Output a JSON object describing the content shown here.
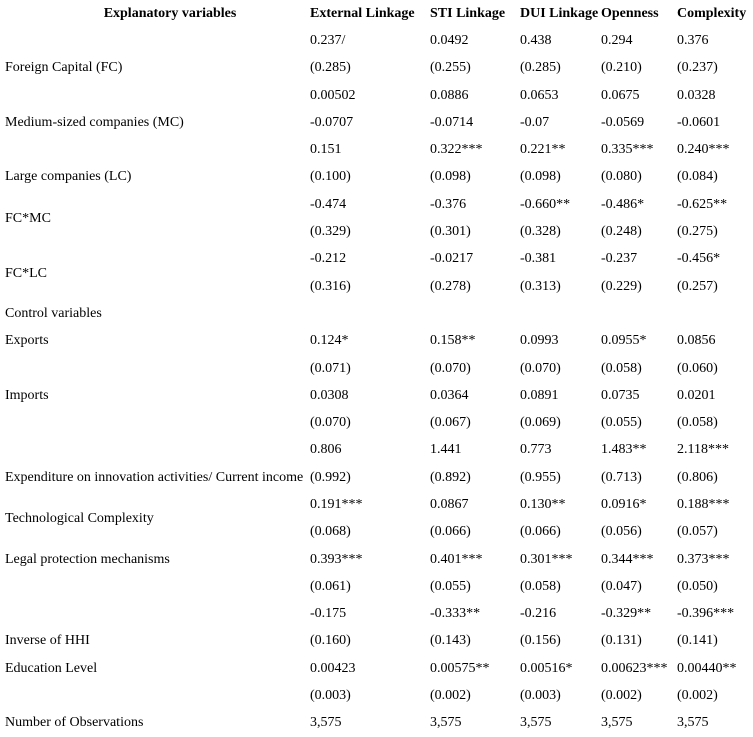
{
  "page": {
    "background_color": "#ffffff",
    "text_color": "#000000"
  },
  "table": {
    "header": {
      "label": "Explanatory variables",
      "columns": [
        "External Linkage",
        "STI Linkage",
        "DUI Linkage",
        "Openness",
        "Complexity"
      ]
    },
    "rows": [
      {
        "label": "",
        "cells": [
          "0.237/",
          "0.0492",
          "0.438",
          "0.294",
          "0.376"
        ]
      },
      {
        "label": "Foreign Capital (FC)",
        "cells": [
          "(0.285)",
          "(0.255)",
          "(0.285)",
          "(0.210)",
          "(0.237)"
        ]
      },
      {
        "label": "",
        "cells": [
          "0.00502",
          "0.0886",
          "0.0653",
          "0.0675",
          "0.0328"
        ]
      },
      {
        "label": "Medium-sized companies (MC)",
        "cells": [
          "-0.0707",
          "-0.0714",
          "-0.07",
          "-0.0569",
          "-0.0601"
        ]
      },
      {
        "label": "",
        "cells": [
          "0.151",
          "0.322***",
          "0.221**",
          "0.335***",
          "0.240***"
        ]
      },
      {
        "label": "Large companies (LC)",
        "cells": [
          "(0.100)",
          "(0.098)",
          "(0.098)",
          "(0.080)",
          "(0.084)"
        ]
      },
      {
        "label": "",
        "cells": [
          "-0.474",
          "-0.376",
          "-0.660**",
          "-0.486*",
          "-0.625**"
        ]
      },
      {
        "label": "FC*MC",
        "label_shift": true,
        "cells": [
          "(0.329)",
          "(0.301)",
          "(0.328)",
          "(0.248)",
          "(0.275)"
        ]
      },
      {
        "label": "",
        "cells": [
          "-0.212",
          "-0.0217",
          "-0.381",
          "-0.237",
          "-0.456*"
        ]
      },
      {
        "label": "FC*LC",
        "label_shift": true,
        "cells": [
          "(0.316)",
          "(0.278)",
          "(0.313)",
          "(0.229)",
          "(0.257)"
        ]
      },
      {
        "label": "Control variables",
        "cells": [
          "",
          "",
          "",
          "",
          ""
        ]
      },
      {
        "label": "Exports",
        "cells": [
          "0.124*",
          "0.158**",
          "0.0993",
          "0.0955*",
          "0.0856"
        ]
      },
      {
        "label": "",
        "cells": [
          "(0.071)",
          "(0.070)",
          "(0.070)",
          "(0.058)",
          "(0.060)"
        ]
      },
      {
        "label": "Imports",
        "cells": [
          "0.0308",
          "0.0364",
          "0.0891",
          "0.0735",
          "0.0201"
        ]
      },
      {
        "label": "",
        "cells": [
          "(0.070)",
          "(0.067)",
          "(0.069)",
          "(0.055)",
          "(0.058)"
        ]
      },
      {
        "label": "",
        "cells": [
          "0.806",
          "1.441",
          "0.773",
          "1.483**",
          "2.118***"
        ]
      },
      {
        "label": "Expenditure on innovation activities/ Current income",
        "cells": [
          "(0.992)",
          "(0.892)",
          "(0.955)",
          "(0.713)",
          "(0.806)"
        ]
      },
      {
        "label": "",
        "cells": [
          "0.191***",
          "0.0867",
          "0.130**",
          "0.0916*",
          "0.188***"
        ]
      },
      {
        "label": "Technological Complexity",
        "label_shift": true,
        "cells": [
          "(0.068)",
          "(0.066)",
          "(0.066)",
          "(0.056)",
          "(0.057)"
        ]
      },
      {
        "label": "Legal protection mechanisms",
        "cells": [
          "0.393***",
          "0.401***",
          "0.301***",
          "0.344***",
          "0.373***"
        ]
      },
      {
        "label": "",
        "cells": [
          "(0.061)",
          "(0.055)",
          "(0.058)",
          "(0.047)",
          "(0.050)"
        ]
      },
      {
        "label": "",
        "cells": [
          "-0.175",
          "-0.333**",
          "-0.216",
          "-0.329**",
          "-0.396***"
        ]
      },
      {
        "label": "Inverse of HHI",
        "cells": [
          "(0.160)",
          "(0.143)",
          "(0.156)",
          "(0.131)",
          "(0.141)"
        ]
      },
      {
        "label": "Education Level",
        "cells": [
          "0.00423",
          "0.00575**",
          "0.00516*",
          "0.00623***",
          "0.00440**"
        ]
      },
      {
        "label": "",
        "cells": [
          "(0.003)",
          "(0.002)",
          "(0.003)",
          "(0.002)",
          "(0.002)"
        ]
      },
      {
        "label": "Number of Observations",
        "cells": [
          "3,575",
          "3,575",
          "3,575",
          "3,575",
          "3,575"
        ]
      }
    ]
  }
}
